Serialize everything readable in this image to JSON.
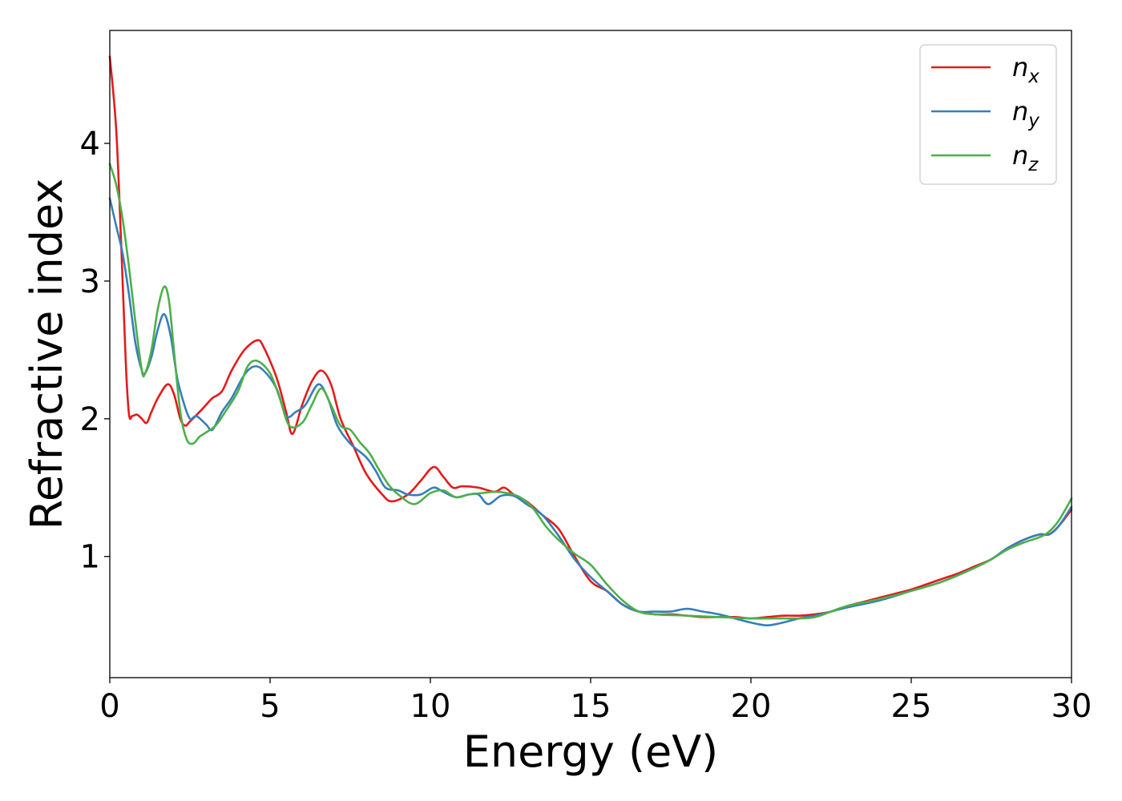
{
  "chart_data": {
    "type": "line",
    "xlabel": "Energy (eV)",
    "ylabel": "Refractive index",
    "xlim": [
      0,
      30
    ],
    "ylim": [
      0.12,
      4.82
    ],
    "xticks": [
      0,
      5,
      10,
      15,
      20,
      25,
      30
    ],
    "xtick_labels": [
      "0",
      "5",
      "10",
      "15",
      "20",
      "25",
      "30"
    ],
    "yticks": [
      1,
      2,
      3,
      4
    ],
    "ytick_labels": [
      "1",
      "2",
      "3",
      "4"
    ],
    "grid": false,
    "legend_position": "top-right",
    "series": [
      {
        "name": "n",
        "sub": "x",
        "color": "#e41a1c",
        "x": [
          0,
          0.2,
          0.35,
          0.5,
          0.6,
          0.7,
          0.85,
          1.0,
          1.15,
          1.3,
          1.5,
          1.8,
          2.0,
          2.2,
          2.35,
          2.5,
          2.8,
          3.0,
          3.2,
          3.5,
          3.8,
          4.2,
          4.6,
          4.8,
          5.2,
          5.5,
          5.7,
          6.0,
          6.3,
          6.6,
          6.9,
          7.2,
          7.6,
          8.0,
          8.5,
          8.8,
          9.3,
          9.7,
          10.1,
          10.4,
          10.7,
          11.0,
          11.5,
          12.0,
          12.3,
          12.6,
          13.0,
          13.5,
          14.0,
          14.5,
          15.0,
          15.5,
          16.0,
          16.5,
          17.0,
          17.5,
          18.0,
          18.5,
          19.0,
          19.5,
          20.0,
          20.5,
          21.0,
          21.5,
          22.0,
          22.5,
          23.0,
          23.5,
          24.0,
          24.5,
          25.0,
          25.5,
          26.0,
          26.5,
          27.0,
          27.5,
          28.0,
          28.5,
          29.0,
          29.3,
          29.6,
          30.0
        ],
        "y": [
          4.63,
          4.1,
          3.3,
          2.4,
          2.03,
          2.02,
          2.03,
          2.0,
          1.97,
          2.05,
          2.15,
          2.25,
          2.18,
          2.0,
          1.95,
          1.98,
          2.05,
          2.1,
          2.15,
          2.2,
          2.35,
          2.5,
          2.57,
          2.52,
          2.3,
          2.05,
          1.89,
          2.1,
          2.27,
          2.35,
          2.25,
          2.0,
          1.8,
          1.6,
          1.45,
          1.4,
          1.45,
          1.55,
          1.65,
          1.58,
          1.5,
          1.51,
          1.5,
          1.47,
          1.5,
          1.45,
          1.4,
          1.3,
          1.2,
          1.0,
          0.82,
          0.75,
          0.65,
          0.6,
          0.58,
          0.58,
          0.57,
          0.56,
          0.56,
          0.56,
          0.55,
          0.56,
          0.57,
          0.57,
          0.58,
          0.6,
          0.64,
          0.67,
          0.7,
          0.73,
          0.76,
          0.8,
          0.84,
          0.88,
          0.93,
          0.98,
          1.06,
          1.12,
          1.16,
          1.16,
          1.22,
          1.34
        ]
      },
      {
        "name": "n",
        "sub": "y",
        "color": "#377eb8",
        "x": [
          0,
          0.2,
          0.4,
          0.6,
          0.8,
          1.0,
          1.1,
          1.3,
          1.5,
          1.7,
          1.9,
          2.1,
          2.3,
          2.5,
          2.7,
          3.0,
          3.2,
          3.5,
          3.8,
          4.2,
          4.5,
          4.8,
          5.2,
          5.5,
          5.8,
          6.1,
          6.5,
          6.8,
          7.1,
          7.5,
          8.0,
          8.3,
          8.6,
          9.0,
          9.3,
          9.7,
          10.1,
          10.4,
          10.8,
          11.2,
          11.5,
          11.8,
          12.2,
          12.6,
          13.0,
          13.5,
          14.0,
          14.5,
          15.0,
          15.5,
          16.0,
          16.5,
          17.0,
          17.5,
          18.0,
          18.5,
          19.0,
          19.5,
          20.0,
          20.5,
          21.0,
          21.5,
          22.0,
          22.5,
          23.0,
          24.0,
          25.0,
          26.0,
          27.0,
          27.5,
          28.0,
          28.5,
          29.0,
          29.3,
          29.6,
          30.0
        ],
        "y": [
          3.6,
          3.4,
          3.2,
          2.9,
          2.55,
          2.35,
          2.33,
          2.45,
          2.65,
          2.76,
          2.6,
          2.3,
          2.12,
          2.0,
          2.02,
          1.96,
          1.92,
          2.05,
          2.15,
          2.32,
          2.38,
          2.35,
          2.22,
          2.02,
          2.05,
          2.1,
          2.25,
          2.15,
          1.95,
          1.82,
          1.72,
          1.62,
          1.5,
          1.48,
          1.45,
          1.45,
          1.5,
          1.47,
          1.43,
          1.45,
          1.45,
          1.38,
          1.44,
          1.44,
          1.38,
          1.3,
          1.15,
          0.98,
          0.85,
          0.75,
          0.65,
          0.6,
          0.6,
          0.6,
          0.62,
          0.6,
          0.58,
          0.55,
          0.52,
          0.5,
          0.52,
          0.55,
          0.57,
          0.6,
          0.63,
          0.68,
          0.75,
          0.82,
          0.92,
          0.98,
          1.06,
          1.12,
          1.16,
          1.16,
          1.22,
          1.36
        ]
      },
      {
        "name": "n",
        "sub": "z",
        "color": "#4daf4a",
        "x": [
          0,
          0.2,
          0.4,
          0.6,
          0.8,
          1.0,
          1.1,
          1.3,
          1.5,
          1.7,
          1.85,
          2.0,
          2.2,
          2.4,
          2.6,
          2.8,
          3.0,
          3.3,
          3.6,
          4.0,
          4.3,
          4.6,
          5.0,
          5.3,
          5.6,
          6.0,
          6.3,
          6.6,
          6.9,
          7.2,
          7.5,
          7.8,
          8.1,
          8.4,
          8.7,
          9.0,
          9.5,
          10.0,
          10.4,
          10.8,
          11.2,
          11.6,
          12.0,
          12.4,
          12.8,
          13.2,
          13.6,
          14.0,
          14.5,
          15.0,
          15.5,
          16.0,
          16.5,
          17.0,
          18.0,
          19.0,
          20.0,
          21.0,
          21.5,
          22.0,
          22.5,
          23.0,
          24.0,
          25.0,
          26.0,
          27.0,
          27.5,
          28.0,
          28.5,
          29.0,
          29.3,
          29.6,
          30.0
        ],
        "y": [
          3.85,
          3.7,
          3.45,
          3.1,
          2.7,
          2.35,
          2.33,
          2.5,
          2.8,
          2.96,
          2.85,
          2.5,
          2.05,
          1.85,
          1.82,
          1.87,
          1.9,
          1.95,
          2.05,
          2.2,
          2.38,
          2.42,
          2.33,
          2.15,
          1.95,
          1.97,
          2.1,
          2.22,
          2.1,
          1.95,
          1.92,
          1.83,
          1.75,
          1.63,
          1.52,
          1.45,
          1.38,
          1.46,
          1.48,
          1.43,
          1.45,
          1.46,
          1.47,
          1.46,
          1.43,
          1.35,
          1.22,
          1.12,
          1.02,
          0.94,
          0.8,
          0.68,
          0.6,
          0.58,
          0.57,
          0.56,
          0.55,
          0.55,
          0.55,
          0.56,
          0.6,
          0.64,
          0.69,
          0.75,
          0.82,
          0.92,
          0.98,
          1.05,
          1.1,
          1.14,
          1.18,
          1.26,
          1.42
        ]
      }
    ]
  }
}
